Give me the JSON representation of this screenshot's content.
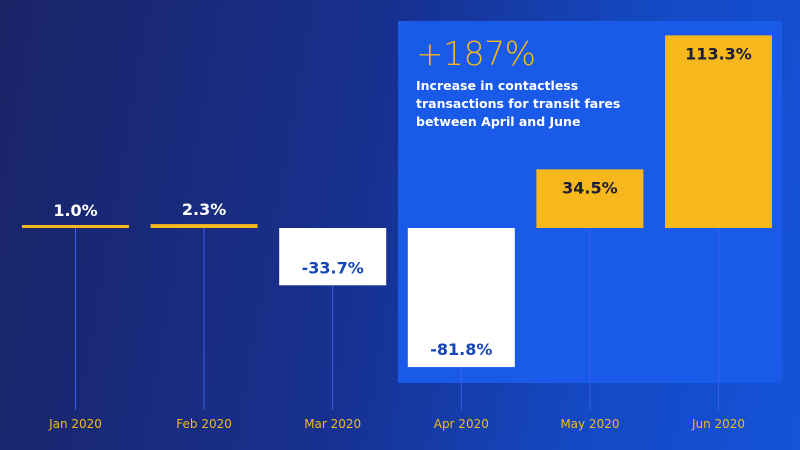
{
  "callout": {
    "value": "+187%",
    "text": "Increase in contactless transactions for transit fares between April and June"
  },
  "colors": {
    "positive": "#f6b81d",
    "negative": "#ffffff",
    "gridline": "#3d5cf2",
    "negative_label": "#1546b8",
    "positive_label_outside": "#ffffff",
    "positive_label_inside": "#1b1b3a",
    "tick": "#f6b81d"
  },
  "chart_data": {
    "type": "bar",
    "categories": [
      "Jan 2020",
      "Feb 2020",
      "Mar 2020",
      "Apr 2020",
      "May 2020",
      "Jun 2020"
    ],
    "values": [
      1.0,
      2.3,
      -33.7,
      -81.8,
      34.5,
      113.3
    ],
    "labels": [
      "1.0%",
      "2.3%",
      "-33.7%",
      "-81.8%",
      "34.5%",
      "113.3%"
    ],
    "title": "",
    "xlabel": "",
    "ylabel": "",
    "grid": false,
    "legend": "none"
  }
}
